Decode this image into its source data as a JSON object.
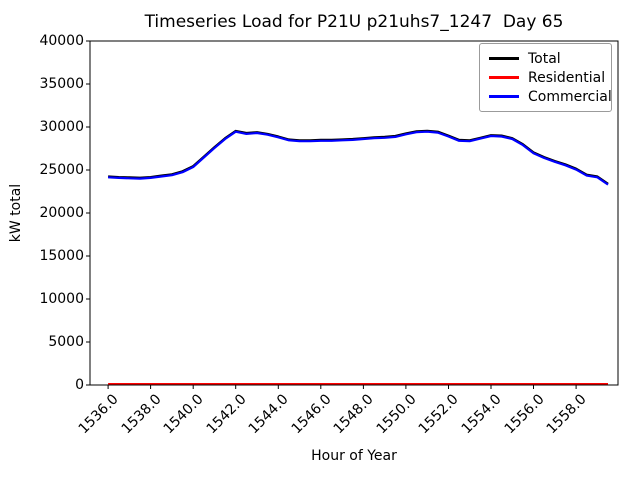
{
  "figure": {
    "background": "#ffffff",
    "axes_border_color": "#000000"
  },
  "chart_data": {
    "type": "line",
    "title": "Timeseries Load for P21U p21uhs7_1247  Day 65",
    "xlabel": "Hour of Year",
    "ylabel": "kW total",
    "grid": false,
    "xlim": [
      1535.15,
      1559.97
    ],
    "ylim": [
      0,
      40000
    ],
    "x_ticks": [
      1536.0,
      1538.0,
      1540.0,
      1542.0,
      1544.0,
      1546.0,
      1548.0,
      1550.0,
      1552.0,
      1554.0,
      1556.0,
      1558.0
    ],
    "x_tick_labels": [
      "1536.0",
      "1538.0",
      "1540.0",
      "1542.0",
      "1544.0",
      "1546.0",
      "1548.0",
      "1550.0",
      "1552.0",
      "1554.0",
      "1556.0",
      "1558.0"
    ],
    "y_ticks": [
      0,
      5000,
      10000,
      15000,
      20000,
      25000,
      30000,
      35000,
      40000
    ],
    "y_tick_labels": [
      "0",
      "5000",
      "10000",
      "15000",
      "20000",
      "25000",
      "30000",
      "35000",
      "40000"
    ],
    "x": [
      1536.0,
      1536.5,
      1537.0,
      1537.5,
      1538.0,
      1538.5,
      1539.0,
      1539.5,
      1540.0,
      1540.5,
      1541.0,
      1541.5,
      1542.0,
      1542.5,
      1543.0,
      1543.5,
      1544.0,
      1544.5,
      1545.0,
      1545.5,
      1546.0,
      1546.5,
      1547.0,
      1547.5,
      1548.0,
      1548.5,
      1549.0,
      1549.5,
      1550.0,
      1550.5,
      1551.0,
      1551.5,
      1552.0,
      1552.5,
      1553.0,
      1553.5,
      1554.0,
      1554.5,
      1555.0,
      1555.5,
      1556.0,
      1556.5,
      1557.0,
      1557.5,
      1558.0,
      1558.5,
      1559.0,
      1559.5
    ],
    "series": [
      {
        "name": "Total",
        "color": "#000000",
        "values": [
          24250,
          24180,
          24140,
          24100,
          24180,
          24350,
          24500,
          24850,
          25450,
          26550,
          27650,
          28700,
          29550,
          29300,
          29400,
          29200,
          28900,
          28550,
          28450,
          28450,
          28500,
          28500,
          28550,
          28600,
          28700,
          28800,
          28850,
          28950,
          29250,
          29500,
          29550,
          29450,
          29000,
          28500,
          28450,
          28750,
          29050,
          29000,
          28700,
          28000,
          27050,
          26500,
          26050,
          25650,
          25150,
          24450,
          24250,
          23400
        ]
      },
      {
        "name": "Residential",
        "color": "#ff0000",
        "values": [
          100,
          100,
          100,
          100,
          100,
          100,
          100,
          100,
          100,
          100,
          100,
          100,
          100,
          100,
          100,
          100,
          100,
          100,
          100,
          100,
          100,
          100,
          100,
          100,
          100,
          100,
          100,
          100,
          100,
          100,
          100,
          100,
          100,
          100,
          100,
          100,
          100,
          100,
          100,
          100,
          100,
          100,
          100,
          100,
          100,
          100,
          100,
          100
        ]
      },
      {
        "name": "Commercial",
        "color": "#0000ff",
        "values": [
          24150,
          24080,
          24040,
          24000,
          24080,
          24250,
          24400,
          24750,
          25350,
          26450,
          27550,
          28600,
          29450,
          29200,
          29300,
          29100,
          28800,
          28450,
          28350,
          28350,
          28400,
          28400,
          28450,
          28500,
          28600,
          28700,
          28750,
          28850,
          29150,
          29400,
          29450,
          29350,
          28900,
          28400,
          28350,
          28650,
          28950,
          28900,
          28600,
          27900,
          26950,
          26400,
          25950,
          25550,
          25050,
          24350,
          24150,
          23300
        ]
      }
    ],
    "legend": {
      "position": "upper right",
      "entries": [
        "Total",
        "Residential",
        "Commercial"
      ]
    }
  }
}
